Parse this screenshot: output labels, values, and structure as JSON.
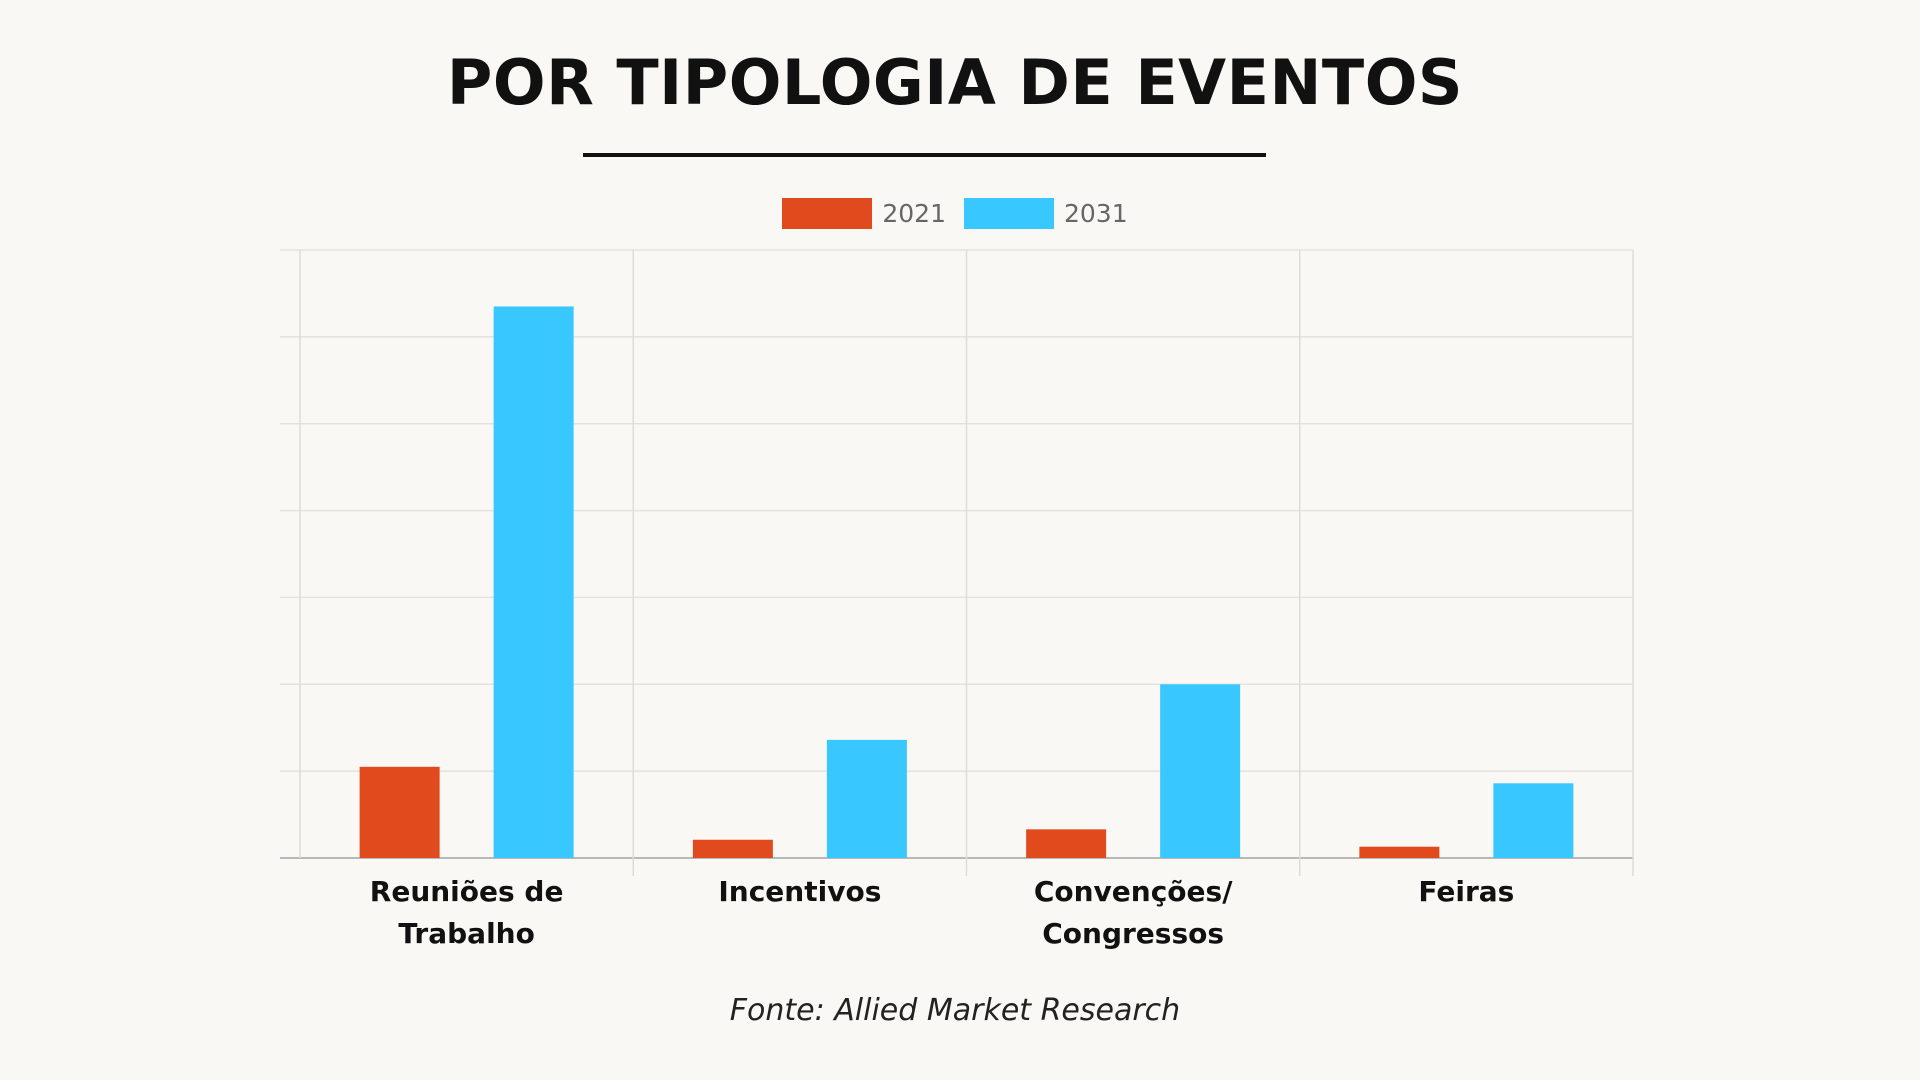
{
  "chart_data": {
    "type": "bar",
    "title": "POR TIPOLOGIA DE EVENTOS",
    "categories": [
      "Reuniões de\nTrabalho",
      "Incentivos",
      "Convenções/\nCongressos",
      "Feiras"
    ],
    "series": [
      {
        "name": "2021",
        "color": "#e14a1c",
        "values": [
          1.05,
          0.21,
          0.33,
          0.13
        ]
      },
      {
        "name": "2031",
        "color": "#38c8ff",
        "values": [
          6.35,
          1.36,
          2.0,
          0.86
        ]
      }
    ],
    "ylim": [
      0,
      7
    ],
    "grid": true,
    "legend_position": "top-center",
    "xlabel": "",
    "ylabel": ""
  },
  "source": "Fonte: Allied Market Research"
}
